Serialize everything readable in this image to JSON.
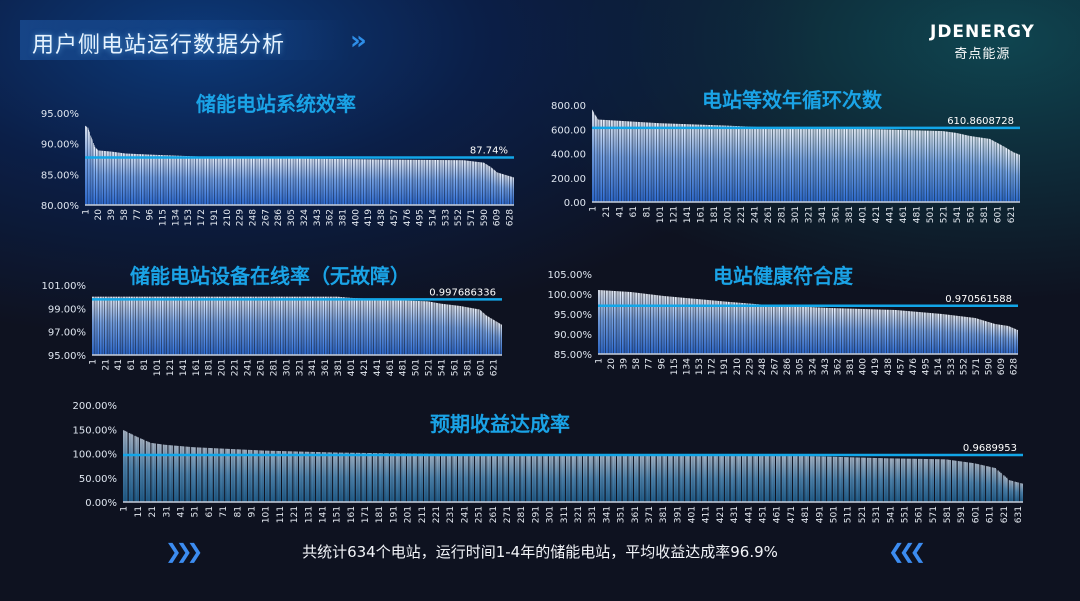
{
  "header": {
    "title": "用户侧电站运行数据分析",
    "chevron_icon": "double-chevron-right-icon",
    "logo_en": "JDENERGY",
    "logo_cn": "奇点能源"
  },
  "footer": {
    "text": "共统计634个电站，运行时间1-4年的储能电站，平均收益达成率96.9%",
    "left_icon": "triple-chevron-right-icon",
    "right_icon": "triple-chevron-left-icon"
  },
  "colors": {
    "title": "#1aa3e6",
    "average_line": "#12a6e8",
    "bar_top": "#e8eefa",
    "bar_bottom": "#2f6fd8"
  },
  "chart_data": [
    {
      "type": "bar",
      "title": "储能电站系统效率",
      "count": 634,
      "ylim": [
        80,
        95
      ],
      "yticks": [
        "95.00%",
        "90.00%",
        "85.00%",
        "80.00%"
      ],
      "ytick_values": [
        95,
        90,
        85,
        80
      ],
      "xtick_start": 1,
      "xtick_step": 19,
      "profile": [
        [
          1,
          92.9
        ],
        [
          5,
          92.6
        ],
        [
          10,
          91.0
        ],
        [
          15,
          89.5
        ],
        [
          20,
          88.9
        ],
        [
          40,
          88.7
        ],
        [
          60,
          88.4
        ],
        [
          100,
          88.2
        ],
        [
          170,
          87.9
        ],
        [
          180,
          87.7
        ],
        [
          300,
          87.6
        ],
        [
          450,
          87.4
        ],
        [
          560,
          87.3
        ],
        [
          590,
          86.9
        ],
        [
          600,
          86.2
        ],
        [
          610,
          85.3
        ],
        [
          625,
          84.8
        ],
        [
          634,
          84.5
        ]
      ],
      "average": 87.74,
      "average_label": "87.74%"
    },
    {
      "type": "bar",
      "title": "电站等效年循环次数",
      "count": 634,
      "ylim": [
        0,
        800
      ],
      "yticks": [
        "800.00",
        "600.00",
        "400.00",
        "200.00",
        "0.00"
      ],
      "ytick_values": [
        800,
        600,
        400,
        200,
        0
      ],
      "xtick_start": 1,
      "xtick_step": 20,
      "profile": [
        [
          1,
          760
        ],
        [
          5,
          720
        ],
        [
          10,
          680
        ],
        [
          40,
          670
        ],
        [
          100,
          650
        ],
        [
          200,
          630
        ],
        [
          260,
          615
        ],
        [
          420,
          600
        ],
        [
          520,
          585
        ],
        [
          540,
          570
        ],
        [
          560,
          545
        ],
        [
          590,
          520
        ],
        [
          610,
          460
        ],
        [
          625,
          410
        ],
        [
          634,
          390
        ]
      ],
      "average": 610.8608728,
      "average_label": "610.8608728"
    },
    {
      "type": "bar",
      "title": "储能电站设备在线率（无故障）",
      "count": 634,
      "ylim": [
        95,
        101
      ],
      "yticks": [
        "101.00%",
        "99.00%",
        "97.00%",
        "95.00%"
      ],
      "ytick_values": [
        101,
        99,
        97,
        95
      ],
      "xtick_start": 1,
      "xtick_step": 20,
      "profile": [
        [
          1,
          100
        ],
        [
          380,
          100
        ],
        [
          400,
          99.9
        ],
        [
          470,
          99.7
        ],
        [
          520,
          99.6
        ],
        [
          540,
          99.4
        ],
        [
          570,
          99.2
        ],
        [
          590,
          99.0
        ],
        [
          600,
          98.9
        ],
        [
          610,
          98.4
        ],
        [
          625,
          97.9
        ],
        [
          634,
          97.6
        ]
      ],
      "average": 99.7686336,
      "average_label": "0.997686336"
    },
    {
      "type": "bar",
      "title": "电站健康符合度",
      "count": 634,
      "ylim": [
        85,
        105
      ],
      "yticks": [
        "105.00%",
        "100.00%",
        "95.00%",
        "90.00%",
        "85.00%"
      ],
      "ytick_values": [
        105,
        100,
        95,
        90,
        85
      ],
      "xtick_start": 1,
      "xtick_step": 19,
      "profile": [
        [
          1,
          101
        ],
        [
          50,
          100.5
        ],
        [
          100,
          99.5
        ],
        [
          200,
          98
        ],
        [
          260,
          97.2
        ],
        [
          350,
          96.5
        ],
        [
          450,
          96
        ],
        [
          520,
          95
        ],
        [
          570,
          94
        ],
        [
          600,
          92.5
        ],
        [
          620,
          92
        ],
        [
          634,
          91
        ]
      ],
      "average": 97.0561588,
      "average_label": "0.970561588"
    },
    {
      "type": "bar",
      "title": "预期收益达成率",
      "count": 634,
      "ylim": [
        0,
        200
      ],
      "yticks": [
        "200.00%",
        "150.00%",
        "100.00%",
        "50.00%",
        "0.00%"
      ],
      "ytick_values": [
        200,
        150,
        100,
        50,
        0
      ],
      "xtick_start": 1,
      "xtick_step": 10,
      "profile": [
        [
          1,
          148
        ],
        [
          10,
          135
        ],
        [
          20,
          122
        ],
        [
          30,
          118
        ],
        [
          50,
          113
        ],
        [
          100,
          106
        ],
        [
          150,
          102
        ],
        [
          200,
          100
        ],
        [
          300,
          97
        ],
        [
          400,
          96
        ],
        [
          480,
          95
        ],
        [
          540,
          90
        ],
        [
          580,
          88
        ],
        [
          600,
          80
        ],
        [
          615,
          70
        ],
        [
          625,
          45
        ],
        [
          634,
          38
        ]
      ],
      "average": 96.89953,
      "average_label": "0.9689953"
    }
  ]
}
